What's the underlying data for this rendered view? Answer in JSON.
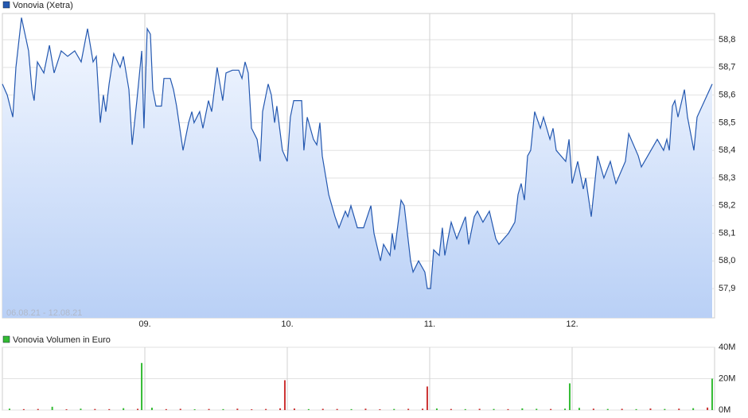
{
  "chart_data": [
    {
      "type": "line",
      "date_range": "06.08.21 - 12.08.21",
      "x": [
        8.0,
        8.034,
        8.073,
        8.095,
        8.134,
        8.184,
        8.207,
        8.223,
        8.246,
        8.291,
        8.33,
        8.363,
        8.413,
        8.458,
        8.508,
        8.553,
        8.598,
        8.637,
        8.659,
        8.687,
        8.709,
        8.726,
        8.749,
        8.782,
        8.827,
        8.849,
        8.888,
        8.911,
        8.944,
        8.978,
        8.994,
        9.017,
        9.039,
        9.056,
        9.078,
        9.117,
        9.134,
        9.179,
        9.201,
        9.223,
        9.268,
        9.307,
        9.33,
        9.346,
        9.385,
        9.408,
        9.447,
        9.469,
        9.508,
        9.547,
        9.57,
        9.615,
        9.659,
        9.682,
        9.704,
        9.726,
        9.749,
        9.788,
        9.81,
        9.827,
        9.866,
        9.888,
        9.911,
        9.927,
        9.966,
        10.0,
        10.022,
        10.045,
        10.101,
        10.117,
        10.14,
        10.184,
        10.207,
        10.229,
        10.246,
        10.291,
        10.335,
        10.363,
        10.408,
        10.425,
        10.447,
        10.492,
        10.536,
        10.587,
        10.609,
        10.654,
        10.676,
        10.721,
        10.737,
        10.754,
        10.799,
        10.821,
        10.866,
        10.883,
        10.922,
        10.966,
        10.983,
        11.006,
        11.028,
        11.067,
        11.089,
        11.106,
        11.151,
        11.19,
        11.251,
        11.274,
        11.313,
        11.335,
        11.374,
        11.419,
        11.464,
        11.486,
        11.553,
        11.598,
        11.62,
        11.642,
        11.665,
        11.687,
        11.709,
        11.737,
        11.777,
        11.799,
        11.844,
        11.866,
        11.888,
        11.955,
        11.978,
        12.0,
        12.039,
        12.078,
        12.095,
        12.134,
        12.179,
        12.223,
        12.268,
        12.307,
        12.374,
        12.397,
        12.464,
        12.486,
        12.531,
        12.598,
        12.642,
        12.665,
        12.682,
        12.704,
        12.721,
        12.743,
        12.788,
        12.81,
        12.855,
        12.877,
        12.983
      ],
      "series": [
        {
          "name": "Vonovia (Xetra)",
          "color": "#2458b0",
          "values": [
            58.64,
            58.6,
            58.52,
            58.7,
            58.88,
            58.76,
            58.62,
            58.58,
            58.72,
            58.68,
            58.78,
            58.68,
            58.76,
            58.74,
            58.76,
            58.72,
            58.84,
            58.72,
            58.74,
            58.5,
            58.6,
            58.54,
            58.64,
            58.75,
            58.7,
            58.74,
            58.62,
            58.42,
            58.58,
            58.76,
            58.48,
            58.84,
            58.82,
            58.62,
            58.56,
            58.56,
            58.66,
            58.66,
            58.62,
            58.56,
            58.4,
            58.5,
            58.54,
            58.5,
            58.54,
            58.48,
            58.58,
            58.54,
            58.7,
            58.58,
            58.68,
            58.69,
            58.69,
            58.66,
            58.72,
            58.68,
            58.48,
            58.44,
            58.36,
            58.54,
            58.64,
            58.6,
            58.5,
            58.56,
            58.4,
            58.36,
            58.52,
            58.58,
            58.58,
            58.4,
            58.52,
            58.44,
            58.42,
            58.5,
            58.38,
            58.24,
            58.16,
            58.12,
            58.18,
            58.16,
            58.2,
            58.12,
            58.12,
            58.2,
            58.1,
            58.0,
            58.06,
            58.02,
            58.1,
            58.04,
            58.22,
            58.2,
            58.0,
            57.96,
            58.0,
            57.96,
            57.9,
            57.9,
            58.04,
            58.02,
            58.12,
            58.02,
            58.14,
            58.08,
            58.16,
            58.06,
            58.16,
            58.18,
            58.14,
            58.18,
            58.08,
            58.06,
            58.1,
            58.14,
            58.24,
            58.28,
            58.22,
            58.38,
            58.4,
            58.54,
            58.48,
            58.52,
            58.44,
            58.48,
            58.4,
            58.36,
            58.44,
            58.28,
            58.36,
            58.26,
            58.3,
            58.16,
            58.38,
            58.3,
            58.36,
            58.28,
            58.36,
            58.46,
            58.38,
            58.34,
            58.38,
            58.44,
            58.4,
            58.44,
            58.4,
            58.56,
            58.58,
            58.52,
            58.62,
            58.52,
            58.4,
            58.52,
            58.64
          ]
        }
      ],
      "xlim": [
        8,
        13
      ],
      "xticks": [
        {
          "value": 9,
          "label": "09."
        },
        {
          "value": 10,
          "label": "10."
        },
        {
          "value": 11,
          "label": "11."
        },
        {
          "value": 12,
          "label": "12."
        }
      ],
      "ylim": [
        57.794,
        58.895
      ],
      "yticks": [
        {
          "value": 57.9,
          "label": "57,9"
        },
        {
          "value": 58.0,
          "label": "58,0"
        },
        {
          "value": 58.1,
          "label": "58,1"
        },
        {
          "value": 58.2,
          "label": "58,2"
        },
        {
          "value": 58.3,
          "label": "58,3"
        },
        {
          "value": 58.4,
          "label": "58,4"
        },
        {
          "value": 58.5,
          "label": "58,5"
        },
        {
          "value": 58.6,
          "label": "58,6"
        },
        {
          "value": 58.7,
          "label": "58,7"
        },
        {
          "value": 58.8,
          "label": "58,8"
        }
      ],
      "grid": true
    },
    {
      "type": "bar",
      "x": [
        8.05,
        8.15,
        8.25,
        8.35,
        8.45,
        8.55,
        8.65,
        8.75,
        8.85,
        8.95,
        8.978,
        9.05,
        9.15,
        9.25,
        9.35,
        9.45,
        9.55,
        9.65,
        9.75,
        9.85,
        9.95,
        9.983,
        10.05,
        10.15,
        10.25,
        10.35,
        10.45,
        10.55,
        10.65,
        10.75,
        10.85,
        10.95,
        10.983,
        11.05,
        11.15,
        11.25,
        11.35,
        11.45,
        11.55,
        11.65,
        11.75,
        11.85,
        11.95,
        11.983,
        12.05,
        12.15,
        12.25,
        12.35,
        12.45,
        12.55,
        12.65,
        12.75,
        12.85,
        12.95,
        12.983
      ],
      "series": [
        {
          "name": "Vonovia Volumen in Euro",
          "color": "#33bb33",
          "values": [
            900000,
            600000,
            700000,
            2100000,
            500000,
            900000,
            700000,
            600000,
            1200000,
            800000,
            30000000,
            1500000,
            600000,
            800000,
            500000,
            700000,
            600000,
            900000,
            500000,
            700000,
            1100000,
            19000000,
            1000000,
            600000,
            800000,
            700000,
            600000,
            900000,
            500000,
            700000,
            800000,
            900000,
            15000000,
            1000000,
            700000,
            600000,
            800000,
            700000,
            600000,
            1100000,
            800000,
            700000,
            900000,
            17000000,
            1400000,
            900000,
            700000,
            800000,
            600000,
            1000000,
            700000,
            900000,
            1200000,
            1600000,
            20000000
          ],
          "colors": [
            "#33bb33",
            "#cc3333",
            "#cc3333",
            "#33bb33",
            "#cc3333",
            "#33bb33",
            "#cc3333",
            "#cc3333",
            "#33bb33",
            "#cc3333",
            "#33bb33",
            "#33bb33",
            "#cc3333",
            "#cc3333",
            "#33bb33",
            "#cc3333",
            "#33bb33",
            "#cc3333",
            "#cc3333",
            "#cc3333",
            "#cc3333",
            "#cc3333",
            "#cc3333",
            "#33bb33",
            "#cc3333",
            "#cc3333",
            "#33bb33",
            "#cc3333",
            "#cc3333",
            "#33bb33",
            "#cc3333",
            "#cc3333",
            "#cc3333",
            "#33bb33",
            "#cc3333",
            "#33bb33",
            "#cc3333",
            "#33bb33",
            "#cc3333",
            "#33bb33",
            "#33bb33",
            "#cc3333",
            "#33bb33",
            "#33bb33",
            "#33bb33",
            "#cc3333",
            "#33bb33",
            "#cc3333",
            "#33bb33",
            "#cc3333",
            "#33bb33",
            "#cc3333",
            "#33bb33",
            "#cc3333",
            "#33bb33"
          ]
        }
      ],
      "xlim": [
        8,
        13
      ],
      "ylim": [
        0,
        40000000
      ],
      "yticks": [
        {
          "value": 0,
          "label": "0M"
        },
        {
          "value": 20000000,
          "label": "20M"
        },
        {
          "value": 40000000,
          "label": "40M"
        }
      ],
      "grid": true
    }
  ]
}
